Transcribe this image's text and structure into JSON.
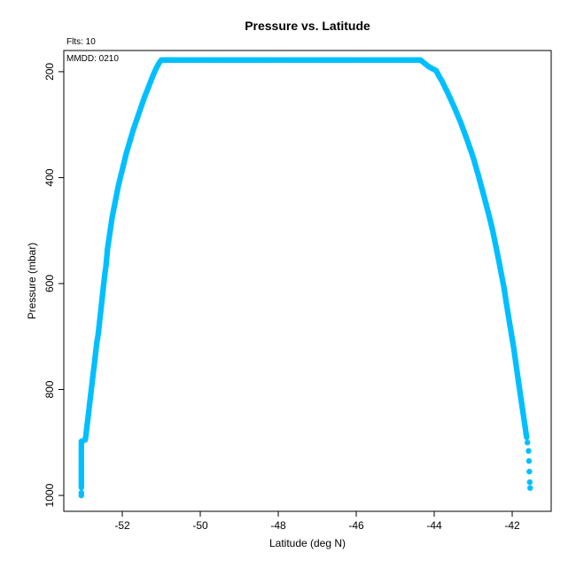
{
  "chart_data": {
    "type": "scatter",
    "title": "Pressure vs. Latitude",
    "xlabel": "Latitude (deg N)",
    "ylabel": "Pressure (mbar)",
    "annotations": {
      "flts": "Flts: 10",
      "mmdd": "MMDD: 0210"
    },
    "xlim": [
      -53.5,
      -41.0
    ],
    "ylim": [
      1030,
      160
    ],
    "y_reversed": true,
    "xticks": [
      -52,
      -50,
      -48,
      -46,
      -44,
      -42
    ],
    "yticks": [
      200,
      400,
      600,
      800,
      1000
    ],
    "grid": false,
    "legend": "none",
    "point_color": "#00BFFF",
    "series": [
      {
        "points": [
          [
            -53.05,
            1000
          ],
          [
            -53.05,
            995
          ],
          [
            -53.05,
            985
          ],
          [
            -53.05,
            975
          ],
          [
            -53.05,
            965
          ],
          [
            -53.05,
            955
          ],
          [
            -53.05,
            945
          ],
          [
            -53.05,
            935
          ],
          [
            -53.05,
            925
          ],
          [
            -53.05,
            915
          ],
          [
            -53.05,
            905
          ],
          [
            -53.05,
            898
          ],
          [
            -52.95,
            895
          ],
          [
            -52.93,
            885
          ],
          [
            -52.91,
            872
          ],
          [
            -52.89,
            860
          ],
          [
            -52.87,
            848
          ],
          [
            -52.85,
            835
          ],
          [
            -52.83,
            822
          ],
          [
            -52.81,
            810
          ],
          [
            -52.79,
            797
          ],
          [
            -52.77,
            785
          ],
          [
            -52.75,
            772
          ],
          [
            -52.73,
            760
          ],
          [
            -52.71,
            748
          ],
          [
            -52.69,
            735
          ],
          [
            -52.67,
            722
          ],
          [
            -52.65,
            710
          ],
          [
            -52.62,
            697
          ],
          [
            -52.6,
            684
          ],
          [
            -52.58,
            670
          ],
          [
            -52.56,
            657
          ],
          [
            -52.54,
            644
          ],
          [
            -52.52,
            630
          ],
          [
            -52.5,
            617
          ],
          [
            -52.48,
            603
          ],
          [
            -52.46,
            590
          ],
          [
            -52.44,
            578
          ],
          [
            -52.42,
            568
          ],
          [
            -52.4,
            552
          ],
          [
            -52.38,
            535
          ],
          [
            -52.35,
            520
          ],
          [
            -52.32,
            505
          ],
          [
            -52.29,
            490
          ],
          [
            -52.26,
            475
          ],
          [
            -52.22,
            460
          ],
          [
            -52.18,
            445
          ],
          [
            -52.14,
            430
          ],
          [
            -52.1,
            415
          ],
          [
            -52.05,
            400
          ],
          [
            -52.0,
            385
          ],
          [
            -51.95,
            370
          ],
          [
            -51.9,
            355
          ],
          [
            -51.84,
            340
          ],
          [
            -51.78,
            325
          ],
          [
            -51.72,
            310
          ],
          [
            -51.65,
            295
          ],
          [
            -51.58,
            280
          ],
          [
            -51.51,
            265
          ],
          [
            -51.44,
            250
          ],
          [
            -51.36,
            235
          ],
          [
            -51.28,
            220
          ],
          [
            -51.2,
            205
          ],
          [
            -51.12,
            192
          ],
          [
            -51.05,
            183
          ],
          [
            -51.0,
            178
          ],
          [
            -50.9,
            178
          ],
          [
            -50.7,
            178
          ],
          [
            -50.5,
            178
          ],
          [
            -50.3,
            178
          ],
          [
            -50.1,
            178
          ],
          [
            -49.9,
            178
          ],
          [
            -49.7,
            178
          ],
          [
            -49.5,
            178
          ],
          [
            -49.3,
            178
          ],
          [
            -49.1,
            178
          ],
          [
            -48.9,
            178
          ],
          [
            -48.7,
            178
          ],
          [
            -48.5,
            178
          ],
          [
            -48.3,
            178
          ],
          [
            -48.1,
            178
          ],
          [
            -47.9,
            178
          ],
          [
            -47.7,
            178
          ],
          [
            -47.5,
            178
          ],
          [
            -47.3,
            178
          ],
          [
            -47.1,
            178
          ],
          [
            -46.9,
            178
          ],
          [
            -46.7,
            178
          ],
          [
            -46.5,
            178
          ],
          [
            -46.3,
            178
          ],
          [
            -46.1,
            178
          ],
          [
            -45.9,
            178
          ],
          [
            -45.7,
            178
          ],
          [
            -45.5,
            178
          ],
          [
            -45.3,
            178
          ],
          [
            -45.1,
            178
          ],
          [
            -44.9,
            178
          ],
          [
            -44.7,
            178
          ],
          [
            -44.5,
            178
          ],
          [
            -44.35,
            178
          ],
          [
            -44.25,
            184
          ],
          [
            -44.15,
            190
          ],
          [
            -44.05,
            194
          ],
          [
            -43.95,
            198
          ],
          [
            -43.88,
            208
          ],
          [
            -43.8,
            218
          ],
          [
            -43.72,
            230
          ],
          [
            -43.64,
            242
          ],
          [
            -43.56,
            255
          ],
          [
            -43.48,
            268
          ],
          [
            -43.4,
            282
          ],
          [
            -43.32,
            296
          ],
          [
            -43.24,
            312
          ],
          [
            -43.16,
            328
          ],
          [
            -43.08,
            345
          ],
          [
            -43.0,
            362
          ],
          [
            -42.93,
            380
          ],
          [
            -42.86,
            398
          ],
          [
            -42.79,
            417
          ],
          [
            -42.72,
            436
          ],
          [
            -42.65,
            456
          ],
          [
            -42.58,
            476
          ],
          [
            -42.51,
            497
          ],
          [
            -42.45,
            518
          ],
          [
            -42.39,
            540
          ],
          [
            -42.33,
            562
          ],
          [
            -42.27,
            585
          ],
          [
            -42.21,
            608
          ],
          [
            -42.16,
            632
          ],
          [
            -42.11,
            655
          ],
          [
            -42.06,
            678
          ],
          [
            -42.01,
            700
          ],
          [
            -41.96,
            722
          ],
          [
            -41.92,
            743
          ],
          [
            -41.88,
            764
          ],
          [
            -41.84,
            785
          ],
          [
            -41.8,
            805
          ],
          [
            -41.76,
            825
          ],
          [
            -41.72,
            845
          ],
          [
            -41.69,
            860
          ],
          [
            -41.66,
            875
          ],
          [
            -41.63,
            890
          ],
          [
            -41.61,
            900
          ],
          [
            -41.58,
            916
          ],
          [
            -41.57,
            935
          ],
          [
            -41.56,
            955
          ],
          [
            -41.55,
            975
          ],
          [
            -41.54,
            986
          ]
        ]
      }
    ]
  }
}
